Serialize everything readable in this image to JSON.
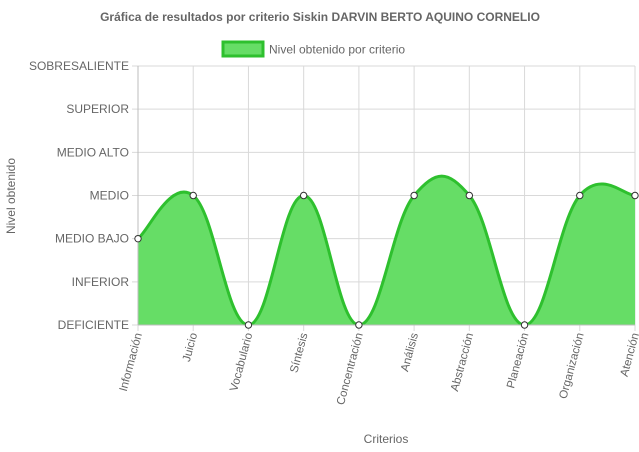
{
  "chart_data": {
    "type": "area",
    "title": "Gráfica de resultados por criterio Siskin DARVIN BERTO AQUINO CORNELIO",
    "xlabel": "Criterios",
    "ylabel": "Nivel obtenido",
    "legend": {
      "position": "top",
      "entries": [
        "Nivel obtenido por criterio"
      ]
    },
    "y_levels": [
      "DEFICIENTE",
      "INFERIOR",
      "MEDIO BAJO",
      "MEDIO",
      "MEDIO ALTO",
      "SUPERIOR",
      "SOBRESALIENTE"
    ],
    "ylim": [
      0,
      6
    ],
    "grid": true,
    "categories": [
      "Información",
      "Juicio",
      "Vocabulario",
      "Síntesis",
      "Concentración",
      "Análisis",
      "Abstracción",
      "Planeación",
      "Organización",
      "Atención"
    ],
    "series": [
      {
        "name": "Nivel obtenido por criterio",
        "values": [
          2,
          3,
          0,
          3,
          0,
          3,
          3,
          0,
          3,
          3
        ]
      }
    ],
    "colors": {
      "fill": "#66dd66",
      "line": "#2ec02e",
      "legend_fill": "#66dd66",
      "legend_border": "#2ec02e"
    }
  }
}
